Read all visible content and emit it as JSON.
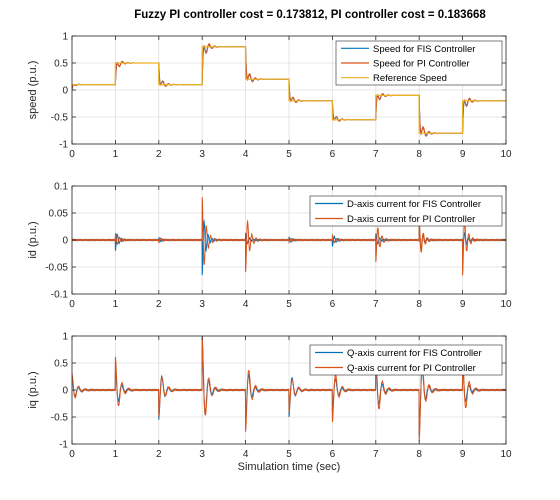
{
  "figure": {
    "title": "Fuzzy PI controller cost = 0.173812, PI controller cost = 0.183668",
    "xlabel": "Simulation time (sec)"
  },
  "colors": {
    "fis": "#0072BD",
    "pi": "#D95319",
    "ref": "#EDB120",
    "grid": "#dfdfdf",
    "axis": "#262626"
  },
  "chart_data": [
    {
      "type": "line",
      "ylabel": "speed (p.u.)",
      "xlim": [
        0,
        10
      ],
      "ylim": [
        -1,
        1
      ],
      "xticks": [
        0,
        1,
        2,
        3,
        4,
        5,
        6,
        7,
        8,
        9,
        10
      ],
      "yticks": [
        -1,
        -0.5,
        0,
        0.5,
        1
      ],
      "ytick_labels": [
        "-1",
        "-0.5",
        "0",
        "0.5",
        "1"
      ],
      "grid": true,
      "legend_position": "top-right",
      "reference_steps": {
        "t": [
          0,
          1,
          2,
          3,
          4,
          5,
          6,
          7,
          8,
          9
        ],
        "value": [
          0.1,
          0.5,
          0.1,
          0.8,
          0.2,
          -0.2,
          -0.55,
          -0.1,
          -0.8,
          -0.2
        ]
      },
      "series": [
        {
          "name": "Speed for FIS Controller",
          "color_key": "fis",
          "overshoot": 0.3,
          "decay": 10,
          "freq": 50
        },
        {
          "name": "Speed for PI Controller",
          "color_key": "pi",
          "overshoot": 0.35,
          "decay": 9,
          "freq": 48
        },
        {
          "name": "Reference Speed",
          "color_key": "ref",
          "kind": "reference"
        }
      ]
    },
    {
      "type": "line",
      "ylabel": "id (p.u.)",
      "xlim": [
        0,
        10
      ],
      "ylim": [
        -0.1,
        0.1
      ],
      "xticks": [
        0,
        1,
        2,
        3,
        4,
        5,
        6,
        7,
        8,
        9,
        10
      ],
      "yticks": [
        -0.1,
        -0.05,
        0,
        0.05,
        0.1
      ],
      "ytick_labels": [
        "-0.1",
        "-0.05",
        "0",
        "0.05",
        "0.1"
      ],
      "grid": true,
      "legend_position": "top-right",
      "events": {
        "t": [
          1,
          2,
          3,
          4,
          5,
          6,
          7,
          8,
          9
        ],
        "fis_amp": [
          -0.02,
          0.004,
          -0.065,
          0.012,
          0.006,
          -0.012,
          0.012,
          0.03,
          -0.025
        ],
        "pi_amp": [
          0.013,
          -0.005,
          0.08,
          -0.06,
          -0.004,
          0.008,
          -0.04,
          0.04,
          -0.065
        ]
      },
      "series": [
        {
          "name": "D-axis current for FIS Controller",
          "color_key": "fis",
          "decay": 14,
          "freq": 70
        },
        {
          "name": "D-axis current for PI Controller",
          "color_key": "pi",
          "decay": 12,
          "freq": 65
        }
      ]
    },
    {
      "type": "line",
      "ylabel": "iq (p.u.)",
      "xlim": [
        0,
        10
      ],
      "ylim": [
        -1,
        1
      ],
      "xticks": [
        0,
        1,
        2,
        3,
        4,
        5,
        6,
        7,
        8,
        9,
        10
      ],
      "yticks": [
        -1,
        -0.5,
        0,
        0.5,
        1
      ],
      "ytick_labels": [
        "-1",
        "-0.5",
        "0",
        "0.5",
        "1"
      ],
      "grid": true,
      "legend_position": "top-right",
      "events": {
        "t": [
          0,
          1,
          2,
          3,
          4,
          5,
          6,
          7,
          8,
          9
        ],
        "fis_amp": [
          0.25,
          0.45,
          -0.55,
          0.95,
          -0.6,
          -0.5,
          -0.45,
          0.55,
          -0.85,
          0.45
        ],
        "pi_amp": [
          0.3,
          0.62,
          -0.5,
          1.0,
          -0.78,
          -0.4,
          -0.6,
          0.75,
          -0.95,
          0.7
        ]
      },
      "series": [
        {
          "name": "Q-axis current for FIS Controller",
          "color_key": "fis",
          "decay": 11,
          "freq": 42
        },
        {
          "name": "Q-axis current for PI Controller",
          "color_key": "pi",
          "decay": 10,
          "freq": 40
        }
      ]
    }
  ]
}
